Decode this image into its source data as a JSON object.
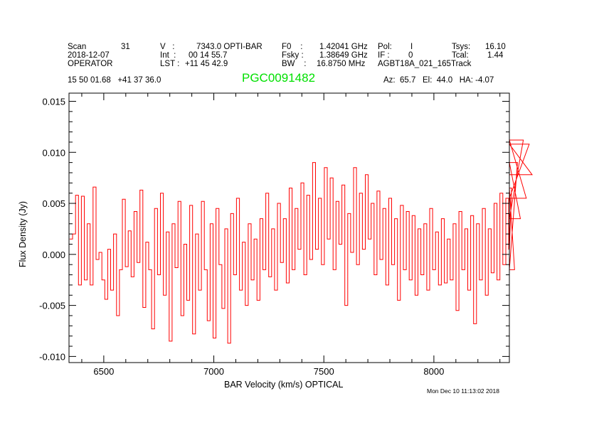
{
  "header": {
    "scan_label": "Scan",
    "scan": "31",
    "date": "2018-12-07",
    "operator": "OPERATOR",
    "v_label": "V   :",
    "v": "7343.0 OPTI-BAR",
    "int_label": "Int  :",
    "int": "00 14 55.7",
    "lst_label": "LST :",
    "lst": "+11 45 42.9",
    "f0_label": "F0    :",
    "f0": "1.42041 GHz",
    "fsky_label": "Fsky :",
    "fsky": "1.38649 GHz",
    "bw_label": "BW    :",
    "bw": "16.8750 MHz",
    "pol_label": "Pol:",
    "pol": "I",
    "if_label": "IF :",
    "if": "0",
    "project": "AGBT18A_021_165",
    "track": "Track",
    "tsys_label": "Tsys:",
    "tsys": "16.10",
    "tcal_label": "Tcal:",
    "tcal": "1.44",
    "coords": "15 50 01.68   +41 37 36.0",
    "source": "PGC0091482",
    "az_el_ha": "Az:  65.7   El:  44.0   HA: -4.07",
    "timestamp": "Mon Dec 10 11:13:02 2018"
  },
  "colors": {
    "line": "#ff0000",
    "source": "#00e000",
    "axes": "#000000"
  },
  "chart_data": {
    "type": "line",
    "title": "PGC0091482",
    "xlabel": "BAR Velocity (km/s) OPTICAL",
    "ylabel": "Flux Density (Jy)",
    "xlim": [
      6342,
      8343
    ],
    "ylim": [
      -0.0106,
      0.0158
    ],
    "xticks": [
      6500,
      7000,
      7500,
      8000
    ],
    "xtick_labels": [
      "6500",
      "7000",
      "7500",
      "8000"
    ],
    "yticks": [
      -0.01,
      -0.005,
      0.0,
      0.005,
      0.01,
      0.015
    ],
    "ytick_labels": [
      "-0.010",
      "-0.005",
      "0.000",
      "0.005",
      "0.010",
      "0.015"
    ],
    "grid": false,
    "series": [
      {
        "name": "spectrum",
        "x_start": 6345,
        "x_step": 13.3,
        "values": [
          0.0015,
          0.002,
          0.0058,
          -0.003,
          0.0057,
          -0.0025,
          0.003,
          -0.003,
          0.0066,
          -0.0005,
          0.0002,
          -0.0025,
          -0.0044,
          0.0005,
          -0.0035,
          0.002,
          -0.006,
          -0.0015,
          0.0054,
          -0.0012,
          0.0023,
          -0.0022,
          0.0042,
          -0.0008,
          0.0063,
          -0.0052,
          0.0012,
          -0.0015,
          -0.0073,
          0.0045,
          -0.002,
          0.006,
          -0.004,
          0.0022,
          -0.0085,
          0.003,
          -0.0013,
          0.0052,
          -0.006,
          0.001,
          -0.0045,
          0.0048,
          -0.0078,
          0.002,
          -0.0035,
          0.0052,
          -0.0015,
          -0.0065,
          0.003,
          -0.0082,
          0.0045,
          -0.001,
          -0.0053,
          0.0025,
          -0.0087,
          0.004,
          -0.002,
          0.0055,
          -0.0035,
          0.0012,
          -0.005,
          0.003,
          -0.0025,
          0.0015,
          -0.0045,
          0.0035,
          -0.0015,
          0.006,
          -0.0022,
          0.0025,
          -0.0035,
          0.005,
          -0.0008,
          0.0035,
          -0.0028,
          0.0065,
          -0.0015,
          0.0045,
          0.0005,
          0.007,
          -0.002,
          0.0058,
          -0.0005,
          0.009,
          0.0005,
          0.0055,
          -0.001,
          0.0085,
          0.0015,
          0.0075,
          -0.0015,
          0.0052,
          0.001,
          0.0068,
          -0.005,
          0.004,
          0.0002,
          0.0085,
          -0.001,
          0.006,
          0.0005,
          0.0078,
          0.0015,
          0.005,
          -0.002,
          0.0062,
          -0.0005,
          0.0045,
          -0.003,
          0.0055,
          -0.001,
          0.0035,
          -0.0045,
          0.0048,
          -0.0015,
          0.0042,
          -0.0025,
          0.0038,
          -0.004,
          0.0025,
          -0.002,
          0.003,
          -0.0035,
          0.0045,
          -0.0015,
          0.0022,
          -0.003,
          0.0035,
          -0.0028,
          0.0015,
          -0.0025,
          0.003,
          -0.0055,
          0.0042,
          -0.0015,
          0.0025,
          -0.0035,
          0.0038,
          -0.0068,
          0.003,
          -0.0025,
          0.0045,
          -0.004,
          0.0025,
          -0.0018,
          0.005,
          -0.0025,
          0.006,
          -0.001,
          0.0055,
          0.0005,
          0.0065,
          -0.0015,
          0.009,
          0.0035,
          0.0112,
          0.0055,
          0.0108,
          0.0078
        ]
      }
    ]
  }
}
